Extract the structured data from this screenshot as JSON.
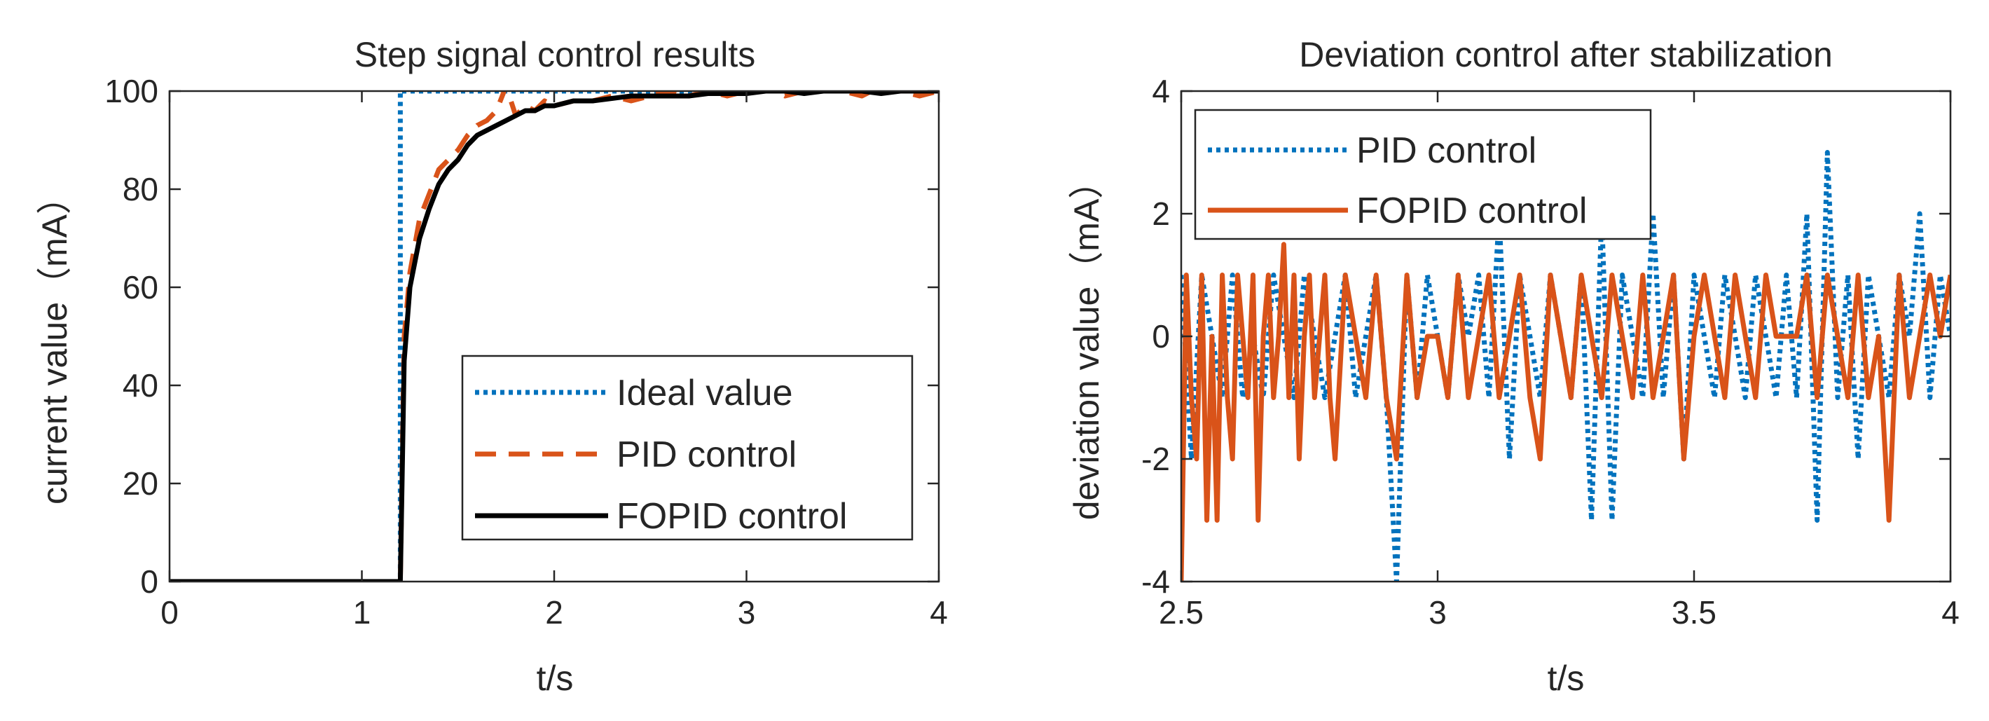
{
  "chart_data": [
    {
      "type": "line",
      "title": "Step signal control results",
      "xlabel": "t/s",
      "ylabel": "current value（mA）",
      "xlim": [
        0,
        4
      ],
      "ylim": [
        0,
        100
      ],
      "xticks": [
        0,
        1,
        2,
        3,
        4
      ],
      "yticks": [
        0,
        20,
        40,
        60,
        80,
        100
      ],
      "grid": false,
      "legend": "bottom-right",
      "series": [
        {
          "name": "Ideal value",
          "style": "dotted",
          "color": "#0072BD",
          "x": [
            0,
            1.2,
            1.2,
            4
          ],
          "y": [
            0,
            0,
            100,
            100
          ]
        },
        {
          "name": "PID control",
          "style": "dashed",
          "color": "#D95319",
          "x": [
            0,
            1.2,
            1.22,
            1.25,
            1.3,
            1.35,
            1.4,
            1.45,
            1.5,
            1.55,
            1.6,
            1.65,
            1.7,
            1.75,
            1.8,
            1.85,
            1.9,
            1.95,
            2.0,
            2.1,
            2.2,
            2.3,
            2.4,
            2.5,
            2.6,
            2.7,
            2.8,
            2.9,
            3.0,
            3.1,
            3.2,
            3.3,
            3.4,
            3.5,
            3.6,
            3.7,
            3.8,
            3.9,
            4.0
          ],
          "y": [
            0,
            0,
            50,
            63,
            74,
            79,
            84,
            86,
            88,
            91,
            93,
            94,
            96,
            101,
            95,
            97,
            96,
            98,
            97,
            98,
            98,
            99,
            98,
            99,
            100,
            99,
            100,
            99,
            100,
            101,
            99,
            100,
            101,
            100,
            99,
            101,
            100,
            99,
            100
          ]
        },
        {
          "name": "FOPID control",
          "style": "solid",
          "color": "#000000",
          "x": [
            0,
            1.2,
            1.22,
            1.25,
            1.3,
            1.35,
            1.4,
            1.45,
            1.5,
            1.55,
            1.6,
            1.65,
            1.7,
            1.75,
            1.8,
            1.85,
            1.9,
            1.95,
            2.0,
            2.1,
            2.2,
            2.3,
            2.4,
            2.5,
            2.6,
            2.7,
            2.8,
            2.9,
            3.0,
            3.1,
            3.2,
            3.3,
            3.4,
            3.5,
            3.6,
            3.7,
            3.8,
            3.9,
            4.0
          ],
          "y": [
            0,
            0,
            45,
            60,
            70,
            76,
            81,
            84,
            86,
            89,
            91,
            92,
            93,
            94,
            95,
            96,
            96,
            97,
            97,
            98,
            98,
            98.5,
            99,
            99,
            99,
            99,
            99.5,
            99.5,
            99.5,
            100,
            100,
            99.5,
            100,
            100,
            100,
            99.5,
            100,
            100,
            100
          ]
        }
      ]
    },
    {
      "type": "line",
      "title": "Deviation control after stabilization",
      "xlabel": "t/s",
      "ylabel": "deviation value（mA）",
      "xlim": [
        2.5,
        4
      ],
      "ylim": [
        -4,
        4
      ],
      "xticks": [
        2.5,
        3,
        3.5,
        4
      ],
      "yticks": [
        -4,
        -2,
        0,
        2,
        4
      ],
      "grid": false,
      "legend": "top-left",
      "series": [
        {
          "name": "PID control",
          "style": "dotted",
          "color": "#0072BD",
          "x": [
            2.5,
            2.52,
            2.54,
            2.56,
            2.58,
            2.6,
            2.62,
            2.64,
            2.66,
            2.68,
            2.7,
            2.72,
            2.74,
            2.76,
            2.78,
            2.8,
            2.82,
            2.84,
            2.86,
            2.88,
            2.9,
            2.92,
            2.94,
            2.96,
            2.98,
            3.0,
            3.02,
            3.04,
            3.06,
            3.08,
            3.1,
            3.12,
            3.14,
            3.16,
            3.18,
            3.2,
            3.22,
            3.24,
            3.26,
            3.28,
            3.3,
            3.32,
            3.34,
            3.36,
            3.38,
            3.4,
            3.42,
            3.44,
            3.46,
            3.48,
            3.5,
            3.52,
            3.54,
            3.56,
            3.58,
            3.6,
            3.62,
            3.64,
            3.66,
            3.68,
            3.7,
            3.72,
            3.74,
            3.76,
            3.78,
            3.8,
            3.82,
            3.84,
            3.86,
            3.88,
            3.9,
            3.92,
            3.94,
            3.96,
            3.98,
            4.0
          ],
          "y": [
            1,
            -2,
            1,
            0,
            -1,
            1,
            -1,
            0,
            -1,
            1,
            0,
            -1,
            1,
            0,
            -1,
            0,
            1,
            -1,
            0,
            1,
            -1,
            -4,
            1,
            -1,
            1,
            0,
            -1,
            1,
            0,
            1,
            -1,
            2,
            -2,
            1,
            0,
            -1,
            1,
            0,
            -1,
            1,
            -3,
            2,
            -3,
            1,
            0,
            -1,
            2,
            -1,
            1,
            -2,
            1,
            0,
            -1,
            1,
            0,
            -1,
            1,
            0,
            -1,
            1,
            -1,
            2,
            -3,
            3,
            -1,
            1,
            -2,
            1,
            0,
            -1,
            1,
            0,
            2,
            -1,
            1,
            0
          ]
        },
        {
          "name": "FOPID control",
          "style": "solid",
          "color": "#D95319",
          "x": [
            2.5,
            2.51,
            2.52,
            2.53,
            2.54,
            2.55,
            2.56,
            2.57,
            2.58,
            2.59,
            2.6,
            2.61,
            2.62,
            2.63,
            2.64,
            2.65,
            2.66,
            2.67,
            2.68,
            2.69,
            2.7,
            2.71,
            2.72,
            2.73,
            2.74,
            2.75,
            2.76,
            2.77,
            2.78,
            2.79,
            2.8,
            2.82,
            2.84,
            2.86,
            2.88,
            2.9,
            2.92,
            2.94,
            2.96,
            2.98,
            3.0,
            3.02,
            3.04,
            3.06,
            3.08,
            3.1,
            3.12,
            3.14,
            3.16,
            3.18,
            3.2,
            3.22,
            3.24,
            3.26,
            3.28,
            3.3,
            3.32,
            3.34,
            3.36,
            3.38,
            3.4,
            3.42,
            3.44,
            3.46,
            3.48,
            3.5,
            3.52,
            3.54,
            3.56,
            3.58,
            3.6,
            3.62,
            3.64,
            3.66,
            3.68,
            3.7,
            3.72,
            3.74,
            3.76,
            3.78,
            3.8,
            3.82,
            3.84,
            3.86,
            3.88,
            3.9,
            3.92,
            3.94,
            3.96,
            3.98,
            4.0
          ],
          "y": [
            -4,
            1,
            -1,
            -2,
            1,
            -3,
            0,
            -3,
            1,
            -1,
            -2,
            1,
            0,
            -1,
            1,
            -3,
            0,
            1,
            -1,
            0,
            1.5,
            -1,
            1,
            -2,
            0,
            1,
            -1,
            0,
            1,
            -1,
            -2,
            1,
            0,
            -1,
            1,
            -1,
            -2,
            1,
            -1,
            0,
            0,
            -1,
            1,
            -1,
            0,
            1,
            -1,
            0,
            1,
            -1,
            -2,
            1,
            0,
            -1,
            1,
            0,
            -1,
            1,
            0,
            -1,
            1,
            -1,
            0,
            1,
            -2,
            0,
            1,
            0,
            -1,
            1,
            0,
            -1,
            1,
            0,
            0,
            0,
            1,
            -1,
            1,
            0,
            -1,
            1,
            -1,
            0,
            -3,
            1,
            -1,
            0,
            1,
            0,
            1
          ]
        }
      ]
    }
  ]
}
